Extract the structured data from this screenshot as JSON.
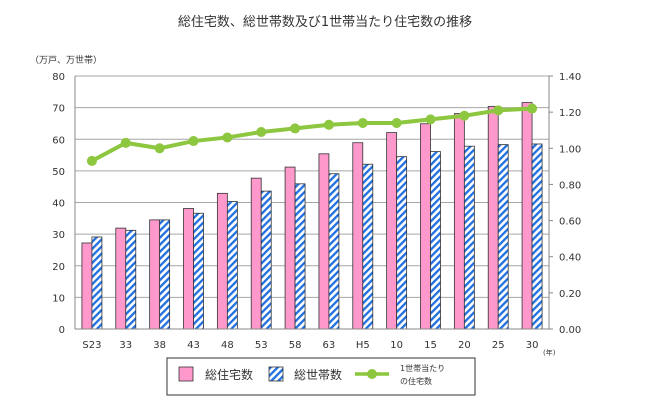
{
  "chart_data": {
    "type": "bar+line",
    "title": "総住宅数、総世帯数及び1世帯当たり住宅数の推移",
    "ylabel_left": "（万戸、万世帯）",
    "xlabel_unit": "(年)",
    "categories": [
      "S23",
      "33",
      "38",
      "43",
      "48",
      "53",
      "58",
      "63",
      "H5",
      "10",
      "15",
      "20",
      "25",
      "30"
    ],
    "ylim_left": [
      0,
      80
    ],
    "yticks_left": [
      "0",
      "10",
      "20",
      "30",
      "40",
      "50",
      "60",
      "70",
      "80"
    ],
    "ylim_right": [
      0,
      1.4
    ],
    "yticks_right": [
      "0.00",
      "0.20",
      "0.40",
      "0.60",
      "0.80",
      "1.00",
      "1.20",
      "1.40"
    ],
    "grid": true,
    "legend_placement": "bottom",
    "series": [
      {
        "name": "総住宅数",
        "type": "bar",
        "axis": "left",
        "color": "#ff99cc",
        "values": [
          27.2,
          31.9,
          34.5,
          38.1,
          42.9,
          47.7,
          51.2,
          55.4,
          58.9,
          62.1,
          64.9,
          68.1,
          70.4,
          71.6
        ]
      },
      {
        "name": "総世帯数",
        "type": "bar",
        "axis": "left",
        "color": "#1f6fe0",
        "pattern": "diagonal-hatch",
        "values": [
          29.1,
          31.2,
          34.5,
          36.6,
          40.3,
          43.6,
          45.9,
          49.1,
          52.1,
          54.5,
          56.1,
          57.8,
          58.3,
          58.5
        ]
      },
      {
        "name": "1世帯当たりの住宅数",
        "name_lines": [
          "1世帯当たり",
          "の住宅数"
        ],
        "type": "line",
        "axis": "right",
        "color": "#8dc63f",
        "values": [
          0.93,
          1.03,
          1.0,
          1.04,
          1.06,
          1.09,
          1.11,
          1.13,
          1.14,
          1.14,
          1.16,
          1.18,
          1.21,
          1.22
        ]
      }
    ]
  }
}
